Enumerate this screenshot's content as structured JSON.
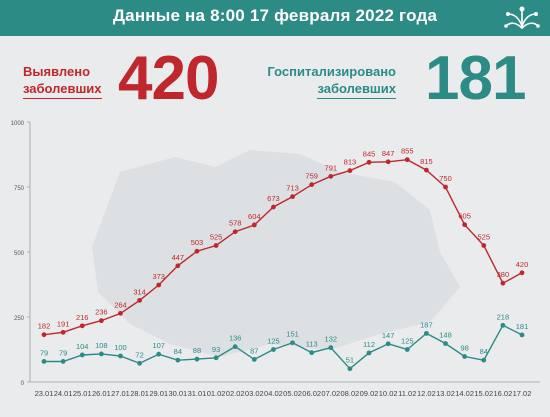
{
  "header": {
    "title": "Данные на 8:00 17 февраля 2022 года"
  },
  "stats": {
    "detected_label_line1": "Выявлено",
    "detected_label_line2": "заболевших",
    "detected_value": "420",
    "hospitalized_label_line1": "Госпитализировано",
    "hospitalized_label_line2": "заболевших",
    "hospitalized_value": "181"
  },
  "colors": {
    "header_bg": "#2d8b86",
    "detected": "#c0272d",
    "hospitalized": "#2d8b86",
    "background": "#e9ebed"
  },
  "chart_data": {
    "type": "line",
    "title": "",
    "xlabel": "",
    "ylabel": "",
    "ylim": [
      0,
      1000
    ],
    "yticks": [
      0,
      250,
      500,
      750,
      1000
    ],
    "grid": false,
    "categories": [
      "23.01",
      "24.01",
      "25.01",
      "26.01",
      "27.01",
      "28.01",
      "29.01",
      "30.01",
      "31.01",
      "01.02",
      "02.02",
      "03.02",
      "04.02",
      "05.02",
      "06.02",
      "07.02",
      "08.02",
      "09.02",
      "10.02",
      "11.02",
      "12.02",
      "13.02",
      "14.02",
      "15.02",
      "16.02",
      "17.02"
    ],
    "series": [
      {
        "key": "detected",
        "color": "#c0272d",
        "values": [
          182,
          191,
          216,
          236,
          264,
          314,
          373,
          447,
          503,
          525,
          578,
          604,
          673,
          713,
          759,
          791,
          813,
          845,
          847,
          855,
          815,
          750,
          605,
          525,
          380,
          420
        ]
      },
      {
        "key": "hospitalized",
        "color": "#2d8b86",
        "values": [
          79,
          79,
          104,
          108,
          100,
          72,
          107,
          84,
          88,
          93,
          136,
          87,
          125,
          151,
          113,
          132,
          51,
          112,
          147,
          125,
          187,
          148,
          98,
          84,
          218,
          181
        ]
      }
    ]
  }
}
